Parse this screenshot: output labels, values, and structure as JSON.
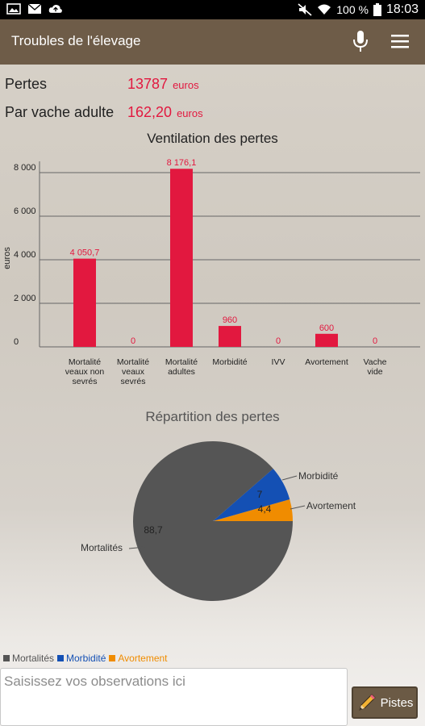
{
  "status_bar": {
    "battery": "100 %",
    "time": "18:03",
    "icons": [
      "picture-icon",
      "mail-icon",
      "cloud-upload-icon",
      "mute-icon",
      "wifi-icon",
      "battery-icon"
    ]
  },
  "app_bar": {
    "title": "Troubles de l'élevage",
    "icons": [
      "microphone-icon",
      "menu-icon"
    ]
  },
  "stats": {
    "pertes_label": "Pertes",
    "pertes_value": "13787",
    "pertes_unit": "euros",
    "par_vache_label": "Par vache adulte",
    "par_vache_value": "162,20",
    "par_vache_unit": "euros"
  },
  "colors": {
    "accent_red": "#e2183f",
    "app_bar": "#6e5c48",
    "mortalites": "#555555",
    "morbidite": "#1450b4",
    "avortement": "#f08c00"
  },
  "chart_data": [
    {
      "type": "bar",
      "title": "Ventilation des pertes",
      "ylabel": "euros",
      "ylim": [
        0,
        8000
      ],
      "yticks": [
        "0",
        "2 000",
        "4 000",
        "6 000",
        "8 000"
      ],
      "grid": true,
      "categories": [
        [
          "Mortalité",
          "veaux non",
          "sevrés"
        ],
        [
          "Mortalité",
          "veaux",
          "sevrés"
        ],
        [
          "Mortalité",
          "adultes"
        ],
        [
          "Morbidité"
        ],
        [
          "IVV"
        ],
        [
          "Avortement"
        ],
        [
          "Vache",
          "vide"
        ]
      ],
      "values": [
        4050.7,
        0,
        8176.1,
        960,
        0,
        600,
        0
      ],
      "data_labels": [
        "4 050,7",
        "0",
        "8 176,1",
        "960",
        "0",
        "600",
        "0"
      ]
    },
    {
      "type": "pie",
      "title": "Répartition des pertes",
      "slices": [
        {
          "name": "Mortalités",
          "value": 88.7,
          "label": "88,7"
        },
        {
          "name": "Morbidité",
          "value": 7,
          "label": "7"
        },
        {
          "name": "Avortement",
          "value": 4.4,
          "label": "4,4"
        }
      ],
      "legend": [
        "Mortalités",
        "Morbidité",
        "Avortement"
      ],
      "legend_position": "bottom-left"
    }
  ],
  "observations": {
    "placeholder": "Saisissez vos observations ici",
    "value": ""
  },
  "pistes_button": {
    "label": "Pistes",
    "icon": "pencil-icon"
  }
}
